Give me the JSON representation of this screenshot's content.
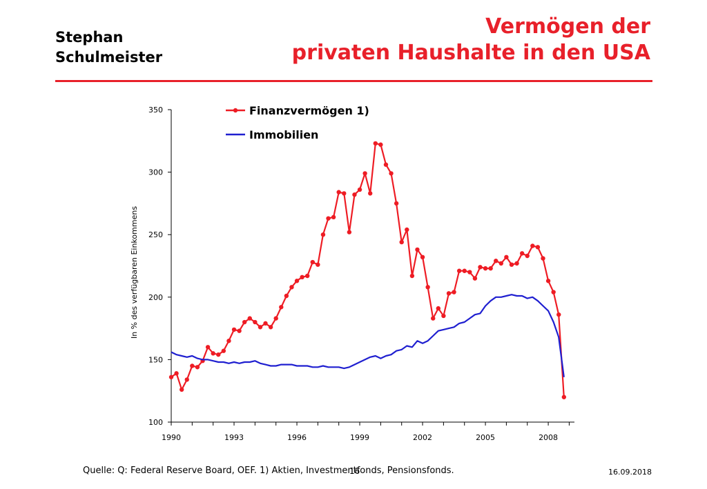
{
  "header": {
    "author_line1": "Stephan",
    "author_line2": "Schulmeister",
    "title_line1": "Vermögen der",
    "title_line2": "privaten Haushalte in den USA"
  },
  "footer": {
    "source": "Quelle: Q: Federal Reserve Board, OEF.  1) Aktien, Investmentfonds, Pensionsfonds.",
    "page": "16",
    "date": "16.09.2018"
  },
  "colors": {
    "accent": "#e8202a",
    "series_financial": "#ee1c24",
    "series_realestate": "#1f1fd0"
  },
  "chart_data": {
    "type": "line",
    "ylabel": "In % des verfügbaren Einkommens",
    "xlabel": "",
    "ylim": [
      100,
      350
    ],
    "xlim": [
      1990,
      2009.25
    ],
    "yticks": [
      100,
      150,
      200,
      250,
      300,
      350
    ],
    "xticks": [
      1990,
      1993,
      1996,
      1999,
      2002,
      2005,
      2008
    ],
    "grid": false,
    "legend_position": "top-left",
    "series": [
      {
        "name": "Finanzvermögen 1)",
        "marker": "circle",
        "x": [
          1990,
          1990.25,
          1990.5,
          1990.75,
          1991,
          1991.25,
          1991.5,
          1991.75,
          1992,
          1992.25,
          1992.5,
          1992.75,
          1993,
          1993.25,
          1993.5,
          1993.75,
          1994,
          1994.25,
          1994.5,
          1994.75,
          1995,
          1995.25,
          1995.5,
          1995.75,
          1996,
          1996.25,
          1996.5,
          1996.75,
          1997,
          1997.25,
          1997.5,
          1997.75,
          1998,
          1998.25,
          1998.5,
          1998.75,
          1999,
          1999.25,
          1999.5,
          1999.75,
          2000,
          2000.25,
          2000.5,
          2000.75,
          2001,
          2001.25,
          2001.5,
          2001.75,
          2002,
          2002.25,
          2002.5,
          2002.75,
          2003,
          2003.25,
          2003.5,
          2003.75,
          2004,
          2004.25,
          2004.5,
          2004.75,
          2005,
          2005.25,
          2005.5,
          2005.75,
          2006,
          2006.25,
          2006.5,
          2006.75,
          2007,
          2007.25,
          2007.5,
          2007.75,
          2008,
          2008.25,
          2008.5,
          2008.75
        ],
        "values": [
          136,
          139,
          126,
          134,
          145,
          144,
          149,
          160,
          155,
          154,
          157,
          165,
          174,
          173,
          180,
          183,
          180,
          176,
          179,
          176,
          183,
          192,
          201,
          208,
          213,
          216,
          217,
          228,
          226,
          250,
          263,
          264,
          284,
          283,
          252,
          282,
          286,
          299,
          283,
          323,
          322,
          306,
          299,
          275,
          244,
          254,
          217,
          238,
          232,
          208,
          183,
          191,
          185,
          203,
          204,
          221,
          221,
          220,
          215,
          224,
          223,
          223,
          229,
          227,
          232,
          226,
          227,
          235,
          233,
          241,
          240,
          231,
          213,
          204,
          186,
          120
        ]
      },
      {
        "name": "Immobilien",
        "marker": "none",
        "x": [
          1990,
          1990.25,
          1990.5,
          1990.75,
          1991,
          1991.25,
          1991.5,
          1991.75,
          1992,
          1992.25,
          1992.5,
          1992.75,
          1993,
          1993.25,
          1993.5,
          1993.75,
          1994,
          1994.25,
          1994.5,
          1994.75,
          1995,
          1995.25,
          1995.5,
          1995.75,
          1996,
          1996.25,
          1996.5,
          1996.75,
          1997,
          1997.25,
          1997.5,
          1997.75,
          1998,
          1998.25,
          1998.5,
          1998.75,
          1999,
          1999.25,
          1999.5,
          1999.75,
          2000,
          2000.25,
          2000.5,
          2000.75,
          2001,
          2001.25,
          2001.5,
          2001.75,
          2002,
          2002.25,
          2002.5,
          2002.75,
          2003,
          2003.25,
          2003.5,
          2003.75,
          2004,
          2004.25,
          2004.5,
          2004.75,
          2005,
          2005.25,
          2005.5,
          2005.75,
          2006,
          2006.25,
          2006.5,
          2006.75,
          2007,
          2007.25,
          2007.5,
          2007.75,
          2008,
          2008.25,
          2008.5,
          2008.75
        ],
        "values": [
          156,
          154,
          153,
          152,
          153,
          151,
          150,
          150,
          149,
          148,
          148,
          147,
          148,
          147,
          148,
          148,
          149,
          147,
          146,
          145,
          145,
          146,
          146,
          146,
          145,
          145,
          145,
          144,
          144,
          145,
          144,
          144,
          144,
          143,
          144,
          146,
          148,
          150,
          152,
          153,
          151,
          153,
          154,
          157,
          158,
          161,
          160,
          165,
          163,
          165,
          169,
          173,
          174,
          175,
          176,
          179,
          180,
          183,
          186,
          187,
          193,
          197,
          200,
          200,
          201,
          202,
          201,
          201,
          199,
          200,
          197,
          193,
          189,
          180,
          168,
          136
        ]
      }
    ]
  }
}
